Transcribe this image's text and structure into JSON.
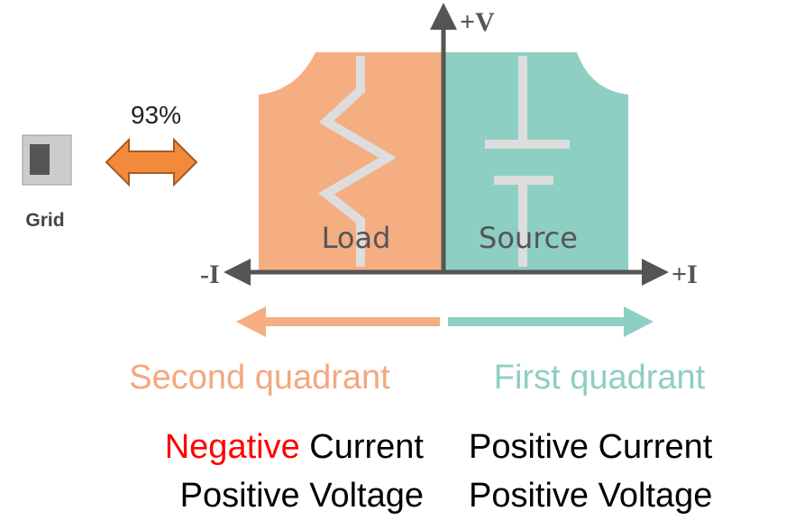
{
  "axes": {
    "vertical": "+V",
    "negative": "-I",
    "positive": "+I"
  },
  "grid": {
    "efficiency": "93%",
    "label": "Grid"
  },
  "load": {
    "label": "Load",
    "quadrant": "Second quadrant",
    "current_sign": "Negative",
    "current": "Current",
    "voltage": "Positive Voltage"
  },
  "source": {
    "label": "Source",
    "quadrant": "First quadrant",
    "current": "Positive Current",
    "voltage": "Positive Voltage"
  }
}
